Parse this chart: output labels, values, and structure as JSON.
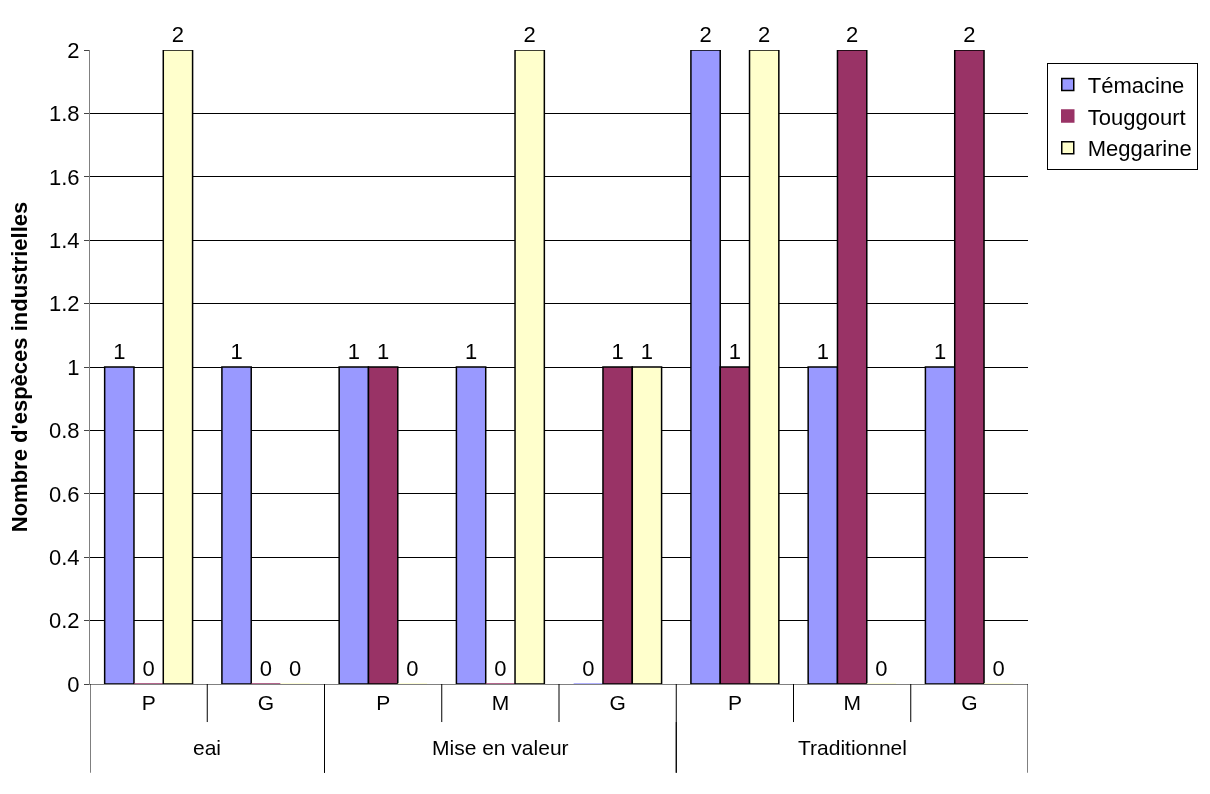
{
  "chart_data": {
    "type": "bar",
    "ylabel": "Nombre d'espèces industrielles",
    "categories": [
      [
        "eai",
        "P"
      ],
      [
        null,
        "G"
      ],
      [
        "Mise en valeur",
        "P"
      ],
      [
        null,
        "M"
      ],
      [
        null,
        "G"
      ],
      [
        "Traditionnel",
        "P"
      ],
      [
        null,
        "M"
      ],
      [
        null,
        "G"
      ]
    ],
    "series": [
      {
        "name": "Témacine",
        "color": "#9999ff",
        "values": [
          1,
          1,
          1,
          1,
          0,
          2,
          1,
          1
        ]
      },
      {
        "name": "Touggourt",
        "color": "#993366",
        "values": [
          0,
          0,
          1,
          0,
          1,
          1,
          2,
          2
        ]
      },
      {
        "name": "Meggarine",
        "color": "#ffffcc",
        "values": [
          2,
          0,
          0,
          2,
          1,
          2,
          0,
          0
        ]
      }
    ],
    "ylim": [
      0,
      2
    ],
    "yticks": [
      0,
      0.2,
      0.4,
      0.6,
      0.8,
      1,
      1.2,
      1.4,
      1.6,
      1.8,
      2
    ],
    "grid": "y",
    "legend": "top right",
    "data_labels": true
  }
}
